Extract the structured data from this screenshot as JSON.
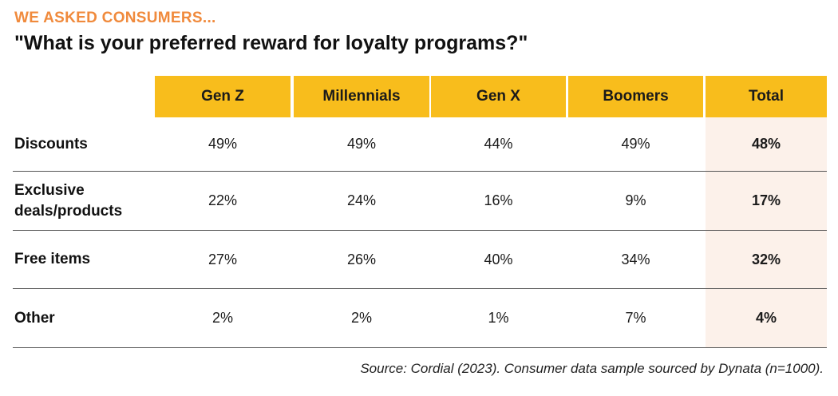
{
  "kicker": "WE ASKED CONSUMERS...",
  "title": "\"What is your preferred reward for loyalty programs?\"",
  "source": "Source: Cordial (2023). Consumer data sample sourced by Dynata (n=1000).",
  "colors": {
    "kicker": "#f08a3c",
    "header_bg": "#f8bd1c",
    "total_column_bg": "#fcf1ea",
    "row_divider": "#555555"
  },
  "chart_data": {
    "type": "table",
    "title": "\"What is your preferred reward for loyalty programs?\"",
    "columns": [
      "Gen Z",
      "Millennials",
      "Gen X",
      "Boomers",
      "Total"
    ],
    "rows": [
      {
        "label": "Discounts",
        "cells": [
          "49%",
          "49%",
          "44%",
          "49%",
          "48%"
        ]
      },
      {
        "label": "Exclusive deals/products",
        "cells": [
          "22%",
          "24%",
          "16%",
          "9%",
          "17%"
        ]
      },
      {
        "label": "Free items",
        "cells": [
          "27%",
          "26%",
          "40%",
          "34%",
          "32%"
        ]
      },
      {
        "label": "Other",
        "cells": [
          "2%",
          "2%",
          "1%",
          "7%",
          "4%"
        ]
      }
    ],
    "series": [
      {
        "name": "Gen Z",
        "values": [
          49,
          22,
          27,
          2
        ]
      },
      {
        "name": "Millennials",
        "values": [
          49,
          24,
          26,
          2
        ]
      },
      {
        "name": "Gen X",
        "values": [
          44,
          16,
          40,
          1
        ]
      },
      {
        "name": "Boomers",
        "values": [
          49,
          9,
          34,
          7
        ]
      },
      {
        "name": "Total",
        "values": [
          48,
          17,
          32,
          4
        ]
      }
    ],
    "categories": [
      "Discounts",
      "Exclusive deals/products",
      "Free items",
      "Other"
    ]
  }
}
